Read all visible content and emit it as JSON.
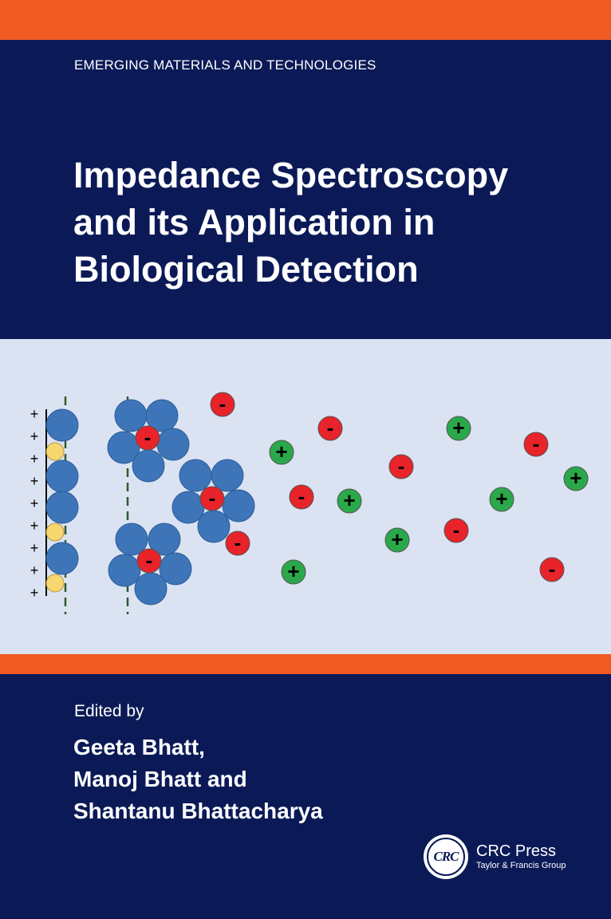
{
  "series": "EMERGING MATERIALS AND TECHNOLOGIES",
  "title_lines": [
    "Impedance Spectroscopy",
    "and its Application in",
    "Biological Detection"
  ],
  "edited_by": "Edited by",
  "editors": [
    "Geeta Bhatt,",
    "Manoj Bhatt and",
    "Shantanu Bhattacharya"
  ],
  "publisher": {
    "logo_text": "CRC",
    "name": "CRC Press",
    "group": "Taylor & Francis Group"
  },
  "illustration": {
    "plus_sign": "+",
    "minus_sign": "-"
  },
  "colors": {
    "navy": "#0b1a57",
    "orange": "#f05a23",
    "panel": "#dbe3f3",
    "blue_sphere": "#3d75b8",
    "yellow_sphere": "#f6d770",
    "negative_ion": "#e8232a",
    "positive_ion": "#2ba84a"
  }
}
